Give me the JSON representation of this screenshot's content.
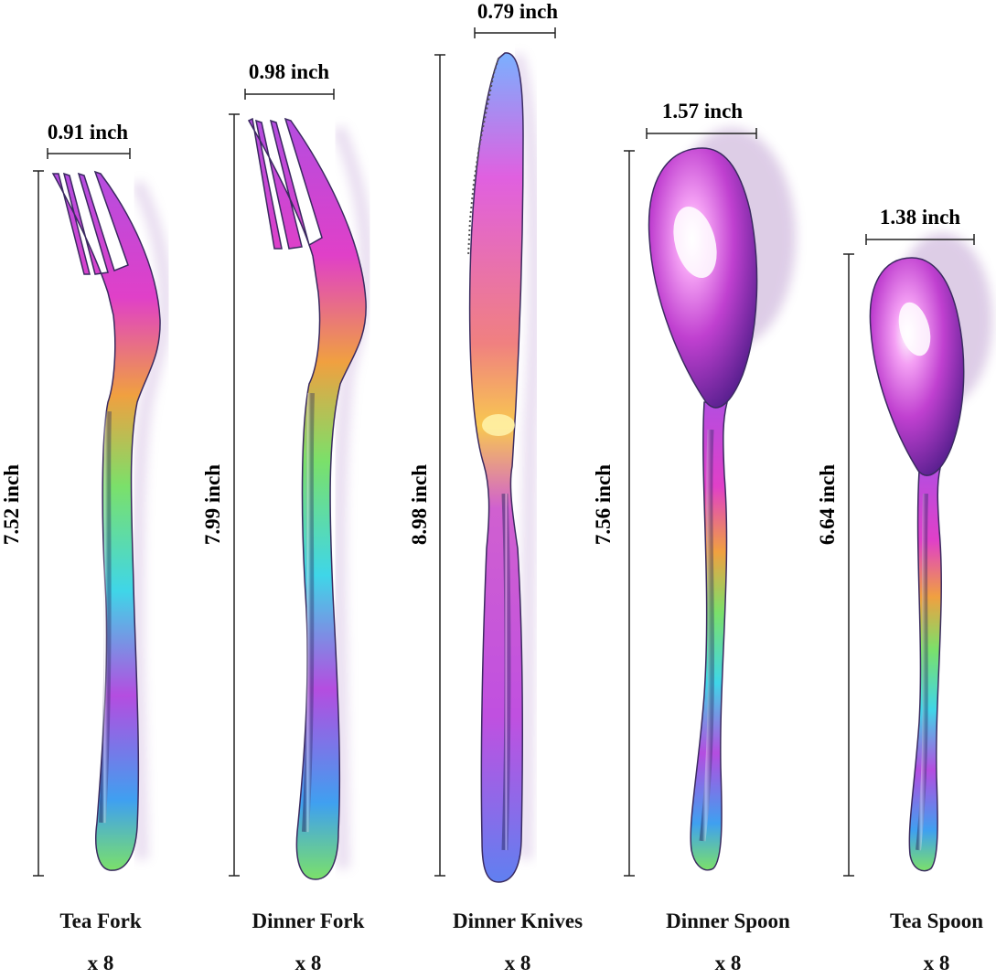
{
  "items": [
    {
      "name": "Tea Fork",
      "quantity": "x 8",
      "width_label": "0.91 inch",
      "length_label": "7.52 inch",
      "icon": "fork-icon"
    },
    {
      "name": "Dinner Fork",
      "quantity": "x 8",
      "width_label": "0.98 inch",
      "length_label": "7.99 inch",
      "icon": "fork-icon"
    },
    {
      "name": "Dinner Knives",
      "quantity": "x 8",
      "width_label": "0.79 inch",
      "length_label": "8.98 inch",
      "icon": "knife-icon"
    },
    {
      "name": "Dinner Spoon",
      "quantity": "x 8",
      "width_label": "1.57 inch",
      "length_label": "7.56 inch",
      "icon": "spoon-icon"
    },
    {
      "name": "Tea Spoon",
      "quantity": "x 8",
      "width_label": "1.38 inch",
      "length_label": "6.64 inch",
      "icon": "spoon-icon"
    }
  ],
  "colors": {
    "gradient": [
      "#3fd6e8",
      "#b44de0",
      "#e040c8",
      "#f0a040",
      "#7be06a",
      "#3fa0f0"
    ],
    "dimension_line": "#222222",
    "text": "#111111",
    "background": "#ffffff"
  }
}
